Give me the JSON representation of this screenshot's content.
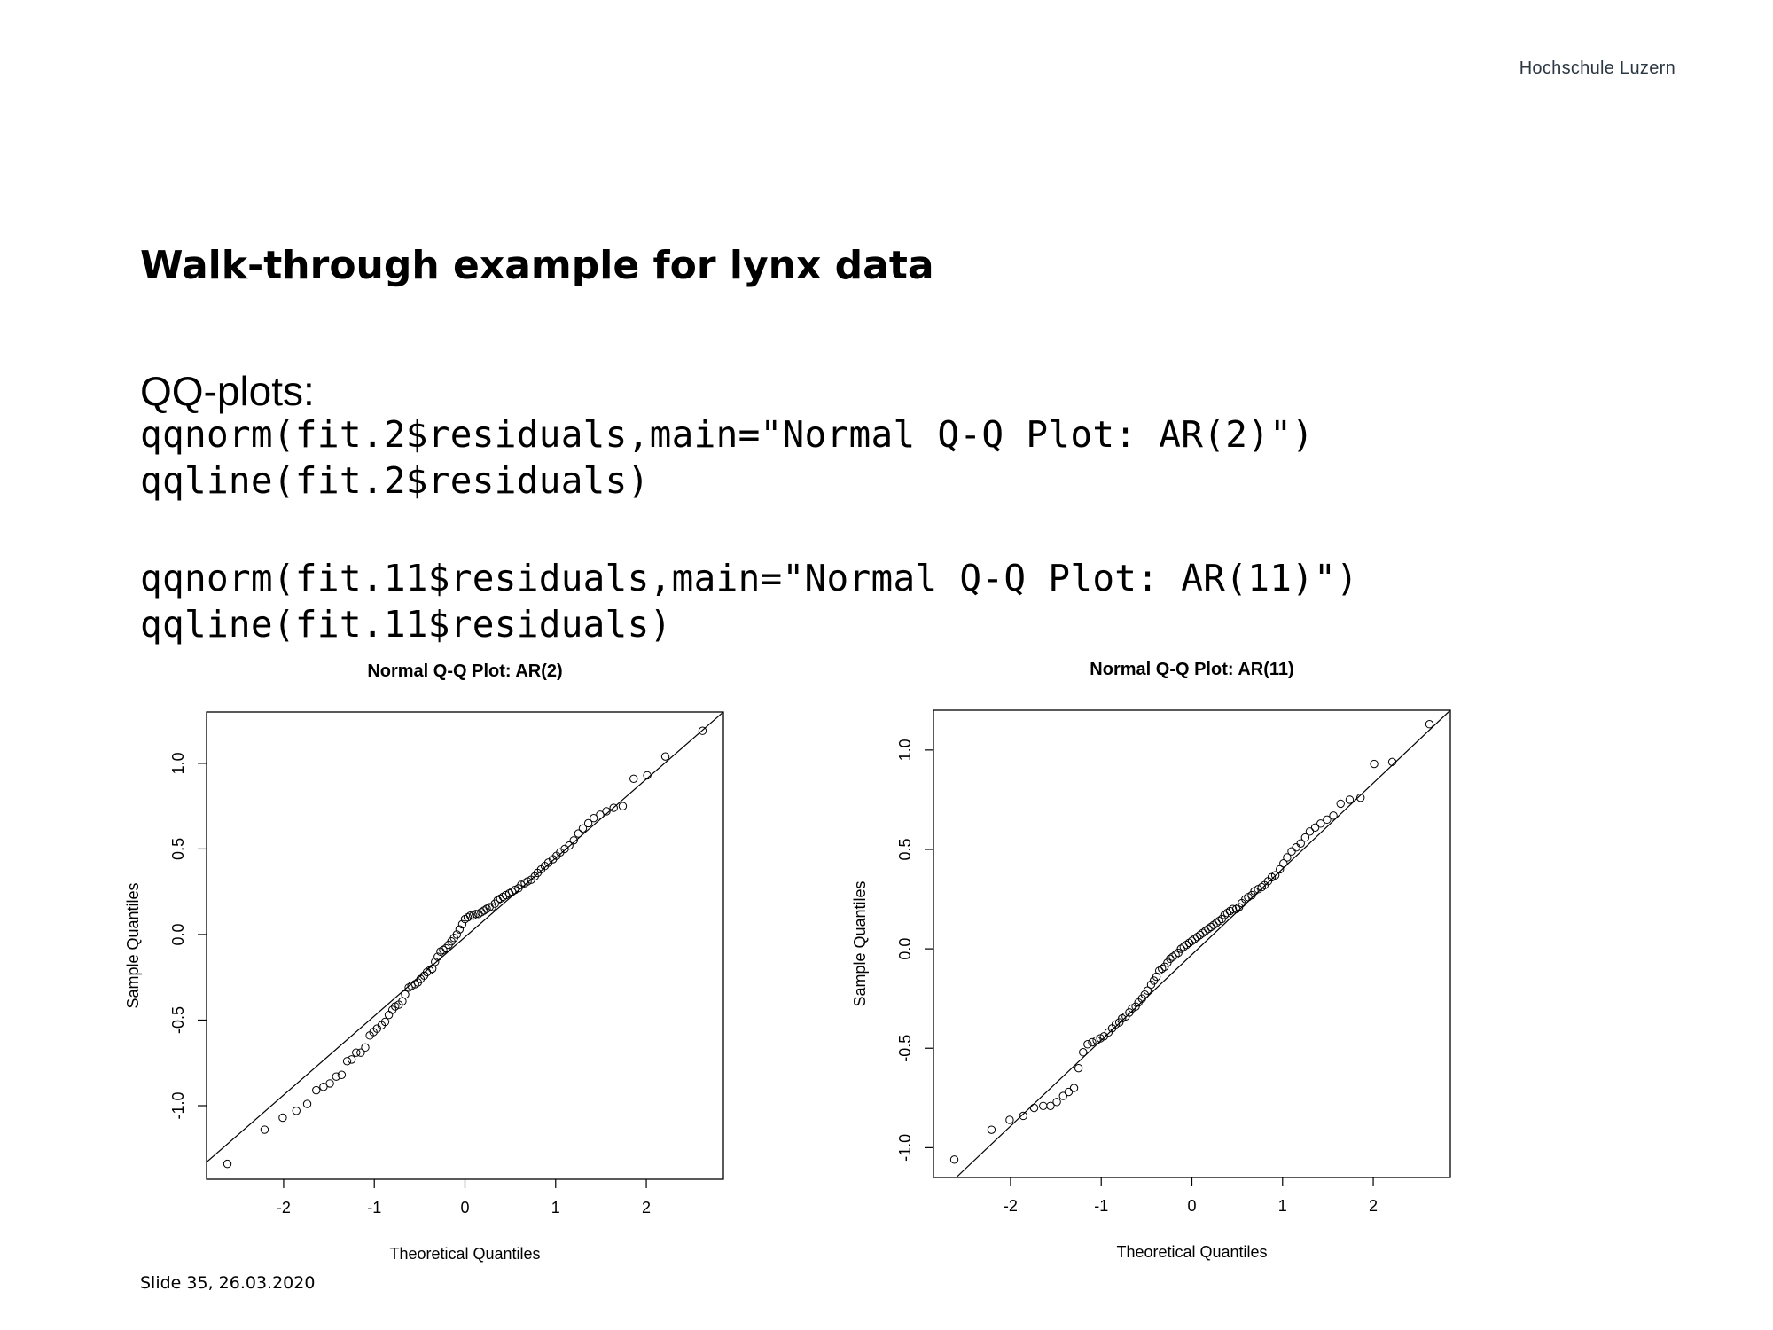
{
  "header": {
    "institution": "Hochschule Luzern"
  },
  "slide": {
    "title": "Walk-through example for lynx data",
    "subhead": "QQ-plots:",
    "code": [
      "qqnorm(fit.2$residuals,main=\"Normal Q-Q Plot: AR(2)\")",
      "qqline(fit.2$residuals)",
      "qqnorm(fit.11$residuals,main=\"Normal Q-Q Plot: AR(11)\")",
      "qqline(fit.11$residuals)"
    ],
    "footer": "Slide 35, 26.03.2020"
  },
  "chart_data": [
    {
      "type": "scatter",
      "title": "Normal Q-Q Plot: AR(2)",
      "xlabel": "Theoretical Quantiles",
      "ylabel": "Sample Quantiles",
      "xlim": [
        -2.85,
        2.85
      ],
      "ylim": [
        -1.43,
        1.3
      ],
      "xticks": [
        -2,
        -1,
        0,
        1,
        2
      ],
      "yticks": [
        -1.0,
        -0.5,
        0.0,
        0.5,
        1.0
      ],
      "qqline": {
        "x1": -2.85,
        "y1": -1.33,
        "x2": 2.85,
        "y2": 1.3
      },
      "n": 112,
      "points": [
        [
          -2.62,
          -1.34
        ],
        [
          -2.21,
          -1.14
        ],
        [
          -2.01,
          -1.07
        ],
        [
          -1.86,
          -1.03
        ],
        [
          -1.74,
          -0.99
        ],
        [
          -1.64,
          -0.91
        ],
        [
          -1.56,
          -0.89
        ],
        [
          -1.49,
          -0.87
        ],
        [
          -1.42,
          -0.83
        ],
        [
          -1.36,
          -0.82
        ],
        [
          -1.3,
          -0.74
        ],
        [
          -1.25,
          -0.73
        ],
        [
          -1.2,
          -0.69
        ],
        [
          -1.15,
          -0.69
        ],
        [
          -1.1,
          -0.66
        ],
        [
          -1.05,
          -0.59
        ],
        [
          -1.01,
          -0.57
        ],
        [
          -0.97,
          -0.55
        ],
        [
          -0.92,
          -0.53
        ],
        [
          -0.88,
          -0.51
        ],
        [
          -0.84,
          -0.47
        ],
        [
          -0.8,
          -0.44
        ],
        [
          -0.77,
          -0.42
        ],
        [
          -0.73,
          -0.41
        ],
        [
          -0.69,
          -0.39
        ],
        [
          -0.66,
          -0.35
        ],
        [
          -0.62,
          -0.31
        ],
        [
          -0.59,
          -0.3
        ],
        [
          -0.55,
          -0.29
        ],
        [
          -0.52,
          -0.28
        ],
        [
          -0.49,
          -0.26
        ],
        [
          -0.45,
          -0.24
        ],
        [
          -0.42,
          -0.22
        ],
        [
          -0.39,
          -0.21
        ],
        [
          -0.36,
          -0.2
        ],
        [
          -0.33,
          -0.16
        ],
        [
          -0.3,
          -0.13
        ],
        [
          -0.27,
          -0.1
        ],
        [
          -0.24,
          -0.09
        ],
        [
          -0.21,
          -0.08
        ],
        [
          -0.18,
          -0.06
        ],
        [
          -0.15,
          -0.04
        ],
        [
          -0.12,
          -0.02
        ],
        [
          -0.09,
          0.0
        ],
        [
          -0.06,
          0.03
        ],
        [
          -0.03,
          0.06
        ],
        [
          0.0,
          0.09
        ],
        [
          0.03,
          0.1
        ],
        [
          0.06,
          0.11
        ],
        [
          0.09,
          0.11
        ],
        [
          0.12,
          0.12
        ],
        [
          0.15,
          0.12
        ],
        [
          0.18,
          0.13
        ],
        [
          0.21,
          0.14
        ],
        [
          0.24,
          0.15
        ],
        [
          0.27,
          0.16
        ],
        [
          0.3,
          0.16
        ],
        [
          0.33,
          0.18
        ],
        [
          0.36,
          0.2
        ],
        [
          0.39,
          0.21
        ],
        [
          0.42,
          0.22
        ],
        [
          0.45,
          0.23
        ],
        [
          0.49,
          0.24
        ],
        [
          0.52,
          0.25
        ],
        [
          0.55,
          0.26
        ],
        [
          0.59,
          0.27
        ],
        [
          0.62,
          0.29
        ],
        [
          0.66,
          0.3
        ],
        [
          0.69,
          0.31
        ],
        [
          0.73,
          0.32
        ],
        [
          0.77,
          0.34
        ],
        [
          0.8,
          0.36
        ],
        [
          0.84,
          0.38
        ],
        [
          0.88,
          0.4
        ],
        [
          0.92,
          0.42
        ],
        [
          0.97,
          0.44
        ],
        [
          1.01,
          0.46
        ],
        [
          1.05,
          0.48
        ],
        [
          1.1,
          0.5
        ],
        [
          1.15,
          0.52
        ],
        [
          1.2,
          0.55
        ],
        [
          1.25,
          0.59
        ],
        [
          1.3,
          0.62
        ],
        [
          1.36,
          0.65
        ],
        [
          1.42,
          0.68
        ],
        [
          1.49,
          0.7
        ],
        [
          1.56,
          0.72
        ],
        [
          1.64,
          0.74
        ],
        [
          1.74,
          0.75
        ],
        [
          1.86,
          0.91
        ],
        [
          2.01,
          0.93
        ],
        [
          2.21,
          1.04
        ],
        [
          2.62,
          1.19
        ]
      ]
    },
    {
      "type": "scatter",
      "title": "Normal Q-Q Plot: AR(11)",
      "xlabel": "Theoretical Quantiles",
      "ylabel": "Sample Quantiles",
      "xlim": [
        -2.85,
        2.85
      ],
      "ylim": [
        -1.15,
        1.2
      ],
      "xticks": [
        -2,
        -1,
        0,
        1,
        2
      ],
      "yticks": [
        -1.0,
        -0.5,
        0.0,
        0.5,
        1.0
      ],
      "qqline": {
        "x1": -2.6,
        "y1": -1.15,
        "x2": 2.85,
        "y2": 1.2
      },
      "n": 112,
      "points": [
        [
          -2.62,
          -1.06
        ],
        [
          -2.21,
          -0.91
        ],
        [
          -2.01,
          -0.86
        ],
        [
          -1.86,
          -0.84
        ],
        [
          -1.74,
          -0.8
        ],
        [
          -1.64,
          -0.79
        ],
        [
          -1.56,
          -0.79
        ],
        [
          -1.49,
          -0.77
        ],
        [
          -1.42,
          -0.74
        ],
        [
          -1.36,
          -0.72
        ],
        [
          -1.3,
          -0.7
        ],
        [
          -1.25,
          -0.6
        ],
        [
          -1.2,
          -0.52
        ],
        [
          -1.15,
          -0.48
        ],
        [
          -1.1,
          -0.47
        ],
        [
          -1.05,
          -0.46
        ],
        [
          -1.01,
          -0.45
        ],
        [
          -0.97,
          -0.44
        ],
        [
          -0.92,
          -0.42
        ],
        [
          -0.88,
          -0.4
        ],
        [
          -0.84,
          -0.38
        ],
        [
          -0.8,
          -0.37
        ],
        [
          -0.77,
          -0.35
        ],
        [
          -0.73,
          -0.34
        ],
        [
          -0.69,
          -0.32
        ],
        [
          -0.66,
          -0.3
        ],
        [
          -0.62,
          -0.29
        ],
        [
          -0.59,
          -0.27
        ],
        [
          -0.55,
          -0.25
        ],
        [
          -0.52,
          -0.23
        ],
        [
          -0.49,
          -0.21
        ],
        [
          -0.45,
          -0.18
        ],
        [
          -0.42,
          -0.16
        ],
        [
          -0.39,
          -0.14
        ],
        [
          -0.36,
          -0.11
        ],
        [
          -0.33,
          -0.1
        ],
        [
          -0.3,
          -0.09
        ],
        [
          -0.27,
          -0.07
        ],
        [
          -0.24,
          -0.05
        ],
        [
          -0.21,
          -0.04
        ],
        [
          -0.18,
          -0.03
        ],
        [
          -0.15,
          -0.02
        ],
        [
          -0.12,
          0.0
        ],
        [
          -0.09,
          0.01
        ],
        [
          -0.06,
          0.02
        ],
        [
          -0.03,
          0.03
        ],
        [
          0.0,
          0.04
        ],
        [
          0.03,
          0.05
        ],
        [
          0.06,
          0.06
        ],
        [
          0.09,
          0.07
        ],
        [
          0.12,
          0.08
        ],
        [
          0.15,
          0.09
        ],
        [
          0.18,
          0.1
        ],
        [
          0.21,
          0.11
        ],
        [
          0.24,
          0.12
        ],
        [
          0.27,
          0.13
        ],
        [
          0.3,
          0.14
        ],
        [
          0.33,
          0.15
        ],
        [
          0.36,
          0.17
        ],
        [
          0.39,
          0.18
        ],
        [
          0.42,
          0.19
        ],
        [
          0.45,
          0.2
        ],
        [
          0.49,
          0.2
        ],
        [
          0.52,
          0.21
        ],
        [
          0.55,
          0.23
        ],
        [
          0.59,
          0.25
        ],
        [
          0.62,
          0.26
        ],
        [
          0.66,
          0.27
        ],
        [
          0.69,
          0.29
        ],
        [
          0.73,
          0.3
        ],
        [
          0.77,
          0.31
        ],
        [
          0.8,
          0.32
        ],
        [
          0.84,
          0.34
        ],
        [
          0.88,
          0.36
        ],
        [
          0.92,
          0.37
        ],
        [
          0.97,
          0.4
        ],
        [
          1.01,
          0.43
        ],
        [
          1.05,
          0.46
        ],
        [
          1.1,
          0.49
        ],
        [
          1.15,
          0.51
        ],
        [
          1.2,
          0.53
        ],
        [
          1.25,
          0.56
        ],
        [
          1.3,
          0.59
        ],
        [
          1.36,
          0.61
        ],
        [
          1.42,
          0.63
        ],
        [
          1.49,
          0.65
        ],
        [
          1.56,
          0.67
        ],
        [
          1.64,
          0.73
        ],
        [
          1.74,
          0.75
        ],
        [
          1.86,
          0.76
        ],
        [
          2.01,
          0.93
        ],
        [
          2.21,
          0.94
        ],
        [
          2.62,
          1.13
        ]
      ]
    }
  ]
}
